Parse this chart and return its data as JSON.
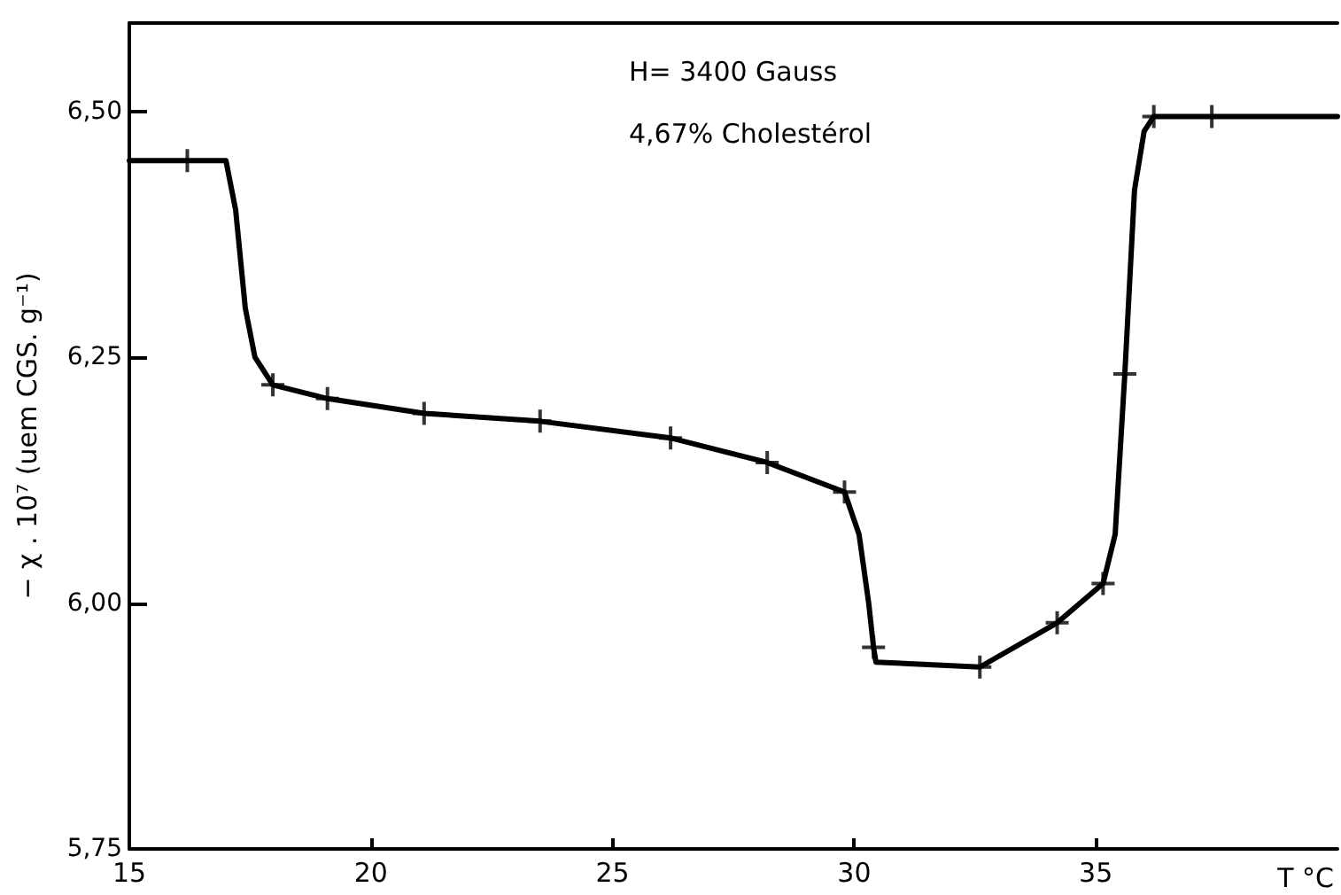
{
  "chart_data": {
    "type": "line",
    "xlabel": "T °C",
    "ylabel": "− χ . 10⁷ (uem CGS. g⁻¹)",
    "annotations": [
      "H= 3400 Gauss",
      "4,67% Cholestérol"
    ],
    "xlim": [
      15,
      40
    ],
    "xticks": [
      15,
      20,
      25,
      30,
      35
    ],
    "ylim": [
      5.75,
      6.59
    ],
    "yticks": [
      {
        "value": 5.75,
        "label": "5,75"
      },
      {
        "value": 6.0,
        "label": "6,00"
      },
      {
        "value": 6.25,
        "label": "6,25"
      },
      {
        "value": 6.5,
        "label": "6,50"
      }
    ],
    "grid": false,
    "series": [
      {
        "marker": "none",
        "color": "#000000",
        "x": [
          15,
          16.2,
          17.0,
          17.2,
          17.4,
          17.6,
          17.97,
          19.1,
          21.1,
          23.5,
          26.2,
          28.2,
          29.8,
          30.1,
          30.3,
          30.4,
          30.45,
          32.6,
          34.2,
          35.15,
          35.4,
          35.6,
          35.8,
          36.0,
          36.2,
          37.4,
          40
        ],
        "values": [
          6.45,
          6.45,
          6.45,
          6.4,
          6.3,
          6.25,
          6.222,
          6.208,
          6.193,
          6.185,
          6.168,
          6.143,
          6.113,
          6.07,
          6.0,
          5.955,
          5.94,
          5.935,
          5.98,
          6.02,
          6.07,
          6.233,
          6.42,
          6.48,
          6.495,
          6.495,
          6.495
        ]
      },
      {
        "type": "scatter",
        "marker": "cross",
        "color": "#000000",
        "x": [
          16.2,
          17.97,
          19.1,
          21.1,
          23.5,
          26.2,
          28.2,
          29.8,
          30.4,
          32.6,
          34.2,
          35.15,
          35.6,
          36.2,
          37.4
        ],
        "values": [
          6.45,
          6.222,
          6.208,
          6.193,
          6.185,
          6.168,
          6.143,
          6.113,
          5.955,
          5.935,
          5.98,
          6.02,
          6.233,
          6.495,
          6.495
        ]
      }
    ]
  }
}
